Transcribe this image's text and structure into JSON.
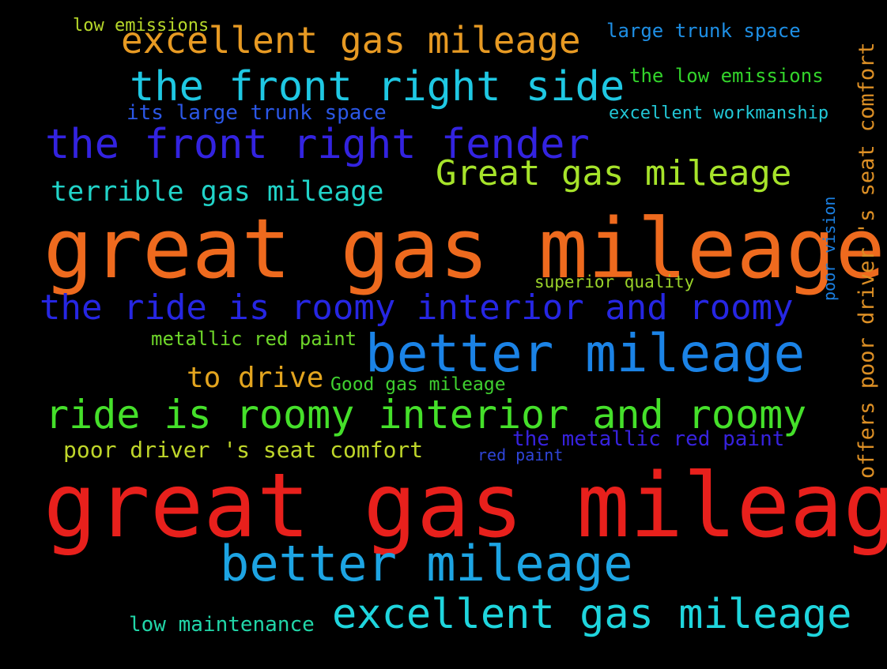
{
  "words": [
    {
      "text": "low emissions",
      "color": "#b7d82a"
    },
    {
      "text": "excellent gas mileage",
      "color": "#e79a23"
    },
    {
      "text": "large trunk space",
      "color": "#1e8fe5"
    },
    {
      "text": "the front right side",
      "color": "#1fc8e3"
    },
    {
      "text": "the low emissions",
      "color": "#33d42b"
    },
    {
      "text": "its large trunk space",
      "color": "#2b57e6"
    },
    {
      "text": "excellent workmanship",
      "color": "#22c7d6"
    },
    {
      "text": "the front right fender",
      "color": "#3323e0"
    },
    {
      "text": "Great gas mileage",
      "color": "#a6e32a"
    },
    {
      "text": "terrible gas mileage",
      "color": "#21d3c8"
    },
    {
      "text": "great gas mileage",
      "color": "#ee6a1e"
    },
    {
      "text": "superior quality",
      "color": "#9ad32a"
    },
    {
      "text": "the ride is roomy interior and roomy",
      "color": "#2626e2"
    },
    {
      "text": "metallic red paint",
      "color": "#6ed62a"
    },
    {
      "text": "better mileage",
      "color": "#1b83e6"
    },
    {
      "text": "to drive",
      "color": "#e3a51f"
    },
    {
      "text": "Good gas mileage",
      "color": "#3fd030"
    },
    {
      "text": "ride is roomy interior and roomy",
      "color": "#45e02a"
    },
    {
      "text": "the metallic red paint",
      "color": "#3722de"
    },
    {
      "text": "poor driver 's seat comfort",
      "color": "#bfd62a"
    },
    {
      "text": "red paint",
      "color": "#2f45d9"
    },
    {
      "text": "great gas mileage",
      "color": "#e8201c"
    },
    {
      "text": "better mileage",
      "color": "#1da4e3"
    },
    {
      "text": "excellent gas mileage",
      "color": "#1fd5dd"
    },
    {
      "text": "low maintenance",
      "color": "#21d6a8"
    },
    {
      "text": "offers poor driver 's seat comfort",
      "color": "#dc8f25"
    },
    {
      "text": "poor vision",
      "color": "#1b7fe0"
    }
  ]
}
